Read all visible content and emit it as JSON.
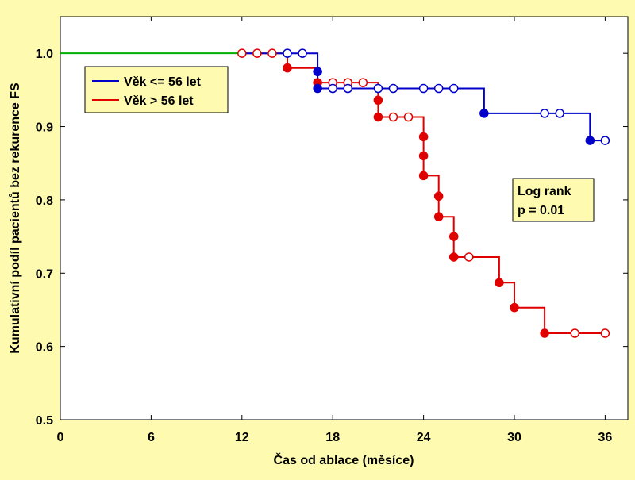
{
  "chart_data": {
    "type": "line",
    "subtype": "kaplan-meier step",
    "xlabel": "Čas od ablace (měsíce)",
    "ylabel": "Kumulativní podíl pacientů bez rekurence FS",
    "xlim": [
      0,
      37.5
    ],
    "ylim": [
      0.5,
      1.05
    ],
    "xticks": [
      0,
      6,
      12,
      18,
      24,
      30,
      36
    ],
    "yticks": [
      0.5,
      0.6,
      0.7,
      0.8,
      0.9,
      1.0
    ],
    "grid": false,
    "legend_position": "top-left",
    "annotation": {
      "line1": "Log rank",
      "line2": "p = 0.01"
    },
    "series": [
      {
        "name": "Věk <= 56 let",
        "color": "#0000c8",
        "steps": [
          [
            0,
            1.0
          ],
          [
            17,
            1.0
          ],
          [
            17,
            0.952
          ],
          [
            28,
            0.952
          ],
          [
            28,
            0.918
          ],
          [
            35,
            0.918
          ],
          [
            35,
            0.881
          ],
          [
            36,
            0.881
          ]
        ],
        "events": [
          [
            17,
            0.975
          ],
          [
            17,
            0.952
          ],
          [
            28,
            0.918
          ],
          [
            35,
            0.881
          ]
        ],
        "censored": [
          [
            15,
            1.0
          ],
          [
            16,
            1.0
          ],
          [
            18,
            0.952
          ],
          [
            19,
            0.952
          ],
          [
            21,
            0.952
          ],
          [
            22,
            0.952
          ],
          [
            24,
            0.952
          ],
          [
            25,
            0.952
          ],
          [
            26,
            0.952
          ],
          [
            32,
            0.918
          ],
          [
            33,
            0.918
          ],
          [
            36,
            0.881
          ]
        ]
      },
      {
        "name": "Věk > 56 let",
        "color": "#e00000",
        "steps": [
          [
            0,
            1.0
          ],
          [
            15,
            1.0
          ],
          [
            15,
            0.98
          ],
          [
            17,
            0.98
          ],
          [
            17,
            0.96
          ],
          [
            21,
            0.96
          ],
          [
            21,
            0.913
          ],
          [
            24,
            0.913
          ],
          [
            24,
            0.833
          ],
          [
            25,
            0.833
          ],
          [
            25,
            0.777
          ],
          [
            26,
            0.777
          ],
          [
            26,
            0.722
          ],
          [
            29,
            0.722
          ],
          [
            29,
            0.687
          ],
          [
            30,
            0.687
          ],
          [
            30,
            0.653
          ],
          [
            32,
            0.653
          ],
          [
            32,
            0.618
          ],
          [
            36,
            0.618
          ]
        ],
        "events": [
          [
            15,
            0.98
          ],
          [
            17,
            0.96
          ],
          [
            21,
            0.936
          ],
          [
            21,
            0.913
          ],
          [
            24,
            0.886
          ],
          [
            24,
            0.86
          ],
          [
            24,
            0.833
          ],
          [
            25,
            0.805
          ],
          [
            25,
            0.777
          ],
          [
            26,
            0.75
          ],
          [
            26,
            0.722
          ],
          [
            29,
            0.687
          ],
          [
            30,
            0.653
          ],
          [
            32,
            0.618
          ]
        ],
        "censored": [
          [
            12,
            1.0
          ],
          [
            13,
            1.0
          ],
          [
            14,
            1.0
          ],
          [
            18,
            0.96
          ],
          [
            19,
            0.96
          ],
          [
            20,
            0.96
          ],
          [
            22,
            0.913
          ],
          [
            23,
            0.913
          ],
          [
            27,
            0.722
          ],
          [
            34,
            0.618
          ],
          [
            36,
            0.618
          ]
        ]
      }
    ],
    "shared_segment_color": "#00b000"
  }
}
